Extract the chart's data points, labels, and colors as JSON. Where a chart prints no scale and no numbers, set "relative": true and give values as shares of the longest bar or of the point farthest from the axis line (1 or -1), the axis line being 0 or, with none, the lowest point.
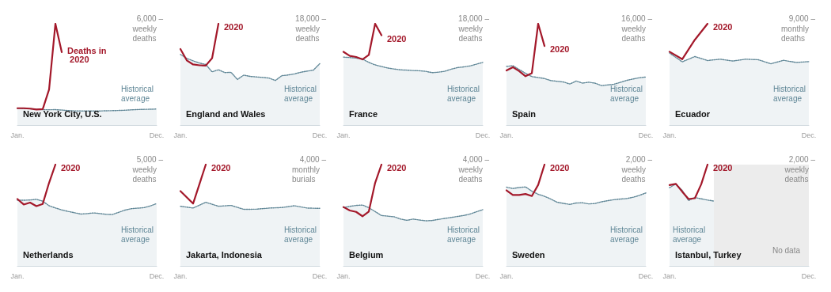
{
  "chart_data": [
    {
      "type": "line",
      "title": "New York City, U.S.",
      "ylabel": "weekly deaths",
      "annotations": [
        "6,000 –"
      ],
      "relative": true,
      "categories": [
        "Jan.",
        null,
        null,
        null,
        null,
        null,
        null,
        null,
        null,
        null,
        null,
        null,
        null,
        null,
        null,
        null,
        null,
        null,
        null,
        null,
        null,
        null,
        "Dec."
      ],
      "grid": false,
      "legend": false,
      "marker": "none",
      "series": [
        {
          "name": "Historical average",
          "type": "area",
          "color": "#5f8696",
          "line_style": "dotted",
          "values": [
            0.166,
            0.164,
            0.161,
            0.156,
            0.151,
            0.151,
            0.152,
            0.148,
            0.143,
            0.139,
            0.139,
            0.139,
            0.139,
            0.139,
            0.141,
            0.142,
            0.144,
            0.146,
            0.15,
            0.153,
            0.155,
            0.156,
            0.158
          ]
        },
        {
          "name": "Deaths in 2020",
          "color": "#a3182a",
          "line_style": "solid",
          "values": [
            0.166,
            0.166,
            0.162,
            0.154,
            0.157,
            0.35,
            1,
            0.72,
            null,
            null,
            null,
            null,
            null,
            null,
            null,
            null,
            null,
            null,
            null,
            null,
            null,
            null,
            null
          ]
        }
      ]
    },
    {
      "type": "line",
      "title": "England and Wales",
      "ylabel": "weekly deaths",
      "annotations": [
        "18,000 –"
      ],
      "relative": true,
      "categories": [
        "Jan.",
        null,
        null,
        null,
        null,
        null,
        null,
        null,
        null,
        null,
        null,
        null,
        null,
        null,
        null,
        null,
        null,
        null,
        null,
        null,
        null,
        null,
        "Dec."
      ],
      "grid": false,
      "legend": false,
      "marker": "none",
      "series": [
        {
          "name": "Historical average",
          "type": "area",
          "color": "#5f8696",
          "line_style": "dotted",
          "values": [
            0.697,
            0.658,
            0.634,
            0.612,
            0.598,
            0.525,
            0.546,
            0.518,
            0.52,
            0.45,
            0.493,
            0.48,
            0.475,
            0.47,
            0.464,
            0.44,
            0.487,
            0.494,
            0.505,
            0.521,
            0.532,
            0.542,
            0.605
          ]
        },
        {
          "name": "2020",
          "color": "#a3182a",
          "line_style": "solid",
          "values": [
            0.75,
            0.638,
            0.598,
            0.59,
            0.587,
            0.66,
            1,
            null,
            null,
            null,
            null,
            null,
            null,
            null,
            null,
            null,
            null,
            null,
            null,
            null,
            null,
            null,
            null
          ]
        }
      ]
    },
    {
      "type": "line",
      "title": "France",
      "ylabel": "weekly deaths",
      "annotations": [
        "18,000 –"
      ],
      "relative": true,
      "categories": [
        "Jan.",
        null,
        null,
        null,
        null,
        null,
        null,
        null,
        null,
        null,
        null,
        null,
        null,
        null,
        null,
        null,
        null,
        null,
        null,
        null,
        null,
        null,
        "Dec."
      ],
      "grid": false,
      "legend": false,
      "marker": "none",
      "series": [
        {
          "name": "Historical average",
          "type": "area",
          "color": "#5f8696",
          "line_style": "dotted",
          "values": [
            0.671,
            0.666,
            0.661,
            0.652,
            0.618,
            0.594,
            0.578,
            0.563,
            0.553,
            0.545,
            0.542,
            0.538,
            0.536,
            0.53,
            0.517,
            0.522,
            0.531,
            0.551,
            0.567,
            0.574,
            0.584,
            0.601,
            0.618
          ]
        },
        {
          "name": "2020",
          "color": "#a3182a",
          "line_style": "solid",
          "values": [
            0.723,
            0.683,
            0.672,
            0.648,
            0.692,
            1,
            0.886,
            null,
            null,
            null,
            null,
            null,
            null,
            null,
            null,
            null,
            null,
            null,
            null,
            null,
            null,
            null,
            null
          ]
        }
      ]
    },
    {
      "type": "line",
      "title": "Spain",
      "ylabel": "weekly deaths",
      "annotations": [
        "16,000 –"
      ],
      "relative": true,
      "categories": [
        "Jan.",
        null,
        null,
        null,
        null,
        null,
        null,
        null,
        null,
        null,
        null,
        null,
        null,
        null,
        null,
        null,
        null,
        null,
        null,
        null,
        null,
        null,
        "Dec."
      ],
      "grid": false,
      "legend": false,
      "marker": "none",
      "series": [
        {
          "name": "Historical average",
          "type": "area",
          "color": "#5f8696",
          "line_style": "dotted",
          "values": [
            0.579,
            0.586,
            0.548,
            0.511,
            0.478,
            0.469,
            0.459,
            0.439,
            0.432,
            0.425,
            0.405,
            0.434,
            0.414,
            0.423,
            0.413,
            0.389,
            0.396,
            0.403,
            0.422,
            0.441,
            0.455,
            0.467,
            0.474
          ]
        },
        {
          "name": "2020",
          "color": "#a3182a",
          "line_style": "solid",
          "values": [
            0.539,
            0.571,
            0.532,
            0.482,
            0.512,
            1,
            0.78,
            null,
            null,
            null,
            null,
            null,
            null,
            null,
            null,
            null,
            null,
            null,
            null,
            null,
            null,
            null,
            null
          ]
        }
      ]
    },
    {
      "type": "line",
      "title": "Ecuador",
      "ylabel": "monthly deaths",
      "annotations": [
        "9,000 –"
      ],
      "relative": true,
      "categories": [
        "Jan.",
        null,
        null,
        null,
        null,
        null,
        null,
        null,
        null,
        null,
        null,
        "Dec."
      ],
      "grid": false,
      "legend": false,
      "marker": "none",
      "series": [
        {
          "name": "Historical average",
          "type": "area",
          "color": "#5f8696",
          "line_style": "dotted",
          "values": [
            0.711,
            0.624,
            0.676,
            0.637,
            0.65,
            0.632,
            0.65,
            0.645,
            0.605,
            0.639,
            0.618,
            0.626
          ]
        },
        {
          "name": "2020",
          "color": "#a3182a",
          "line_style": "solid",
          "values": [
            0.724,
            0.65,
            0.842,
            1,
            null,
            null,
            null,
            null,
            null,
            null,
            null,
            null
          ]
        }
      ]
    },
    {
      "type": "line",
      "title": "Netherlands",
      "ylabel": "weekly deaths",
      "annotations": [
        "5,000 –"
      ],
      "relative": true,
      "categories": [
        "Jan.",
        null,
        null,
        null,
        null,
        null,
        null,
        null,
        null,
        null,
        null,
        null,
        null,
        null,
        null,
        null,
        null,
        null,
        null,
        null,
        null,
        null,
        "Dec."
      ],
      "grid": false,
      "legend": false,
      "marker": "none",
      "series": [
        {
          "name": "Historical average",
          "type": "area",
          "color": "#5f8696",
          "line_style": "dotted",
          "values": [
            0.649,
            0.648,
            0.651,
            0.657,
            0.639,
            0.594,
            0.572,
            0.553,
            0.538,
            0.525,
            0.512,
            0.516,
            0.523,
            0.517,
            0.509,
            0.507,
            0.529,
            0.551,
            0.565,
            0.57,
            0.575,
            0.592,
            0.615
          ]
        },
        {
          "name": "2020",
          "color": "#a3182a",
          "line_style": "solid",
          "values": [
            0.66,
            0.606,
            0.625,
            0.59,
            0.612,
            0.82,
            1,
            null,
            null,
            null,
            null,
            null,
            null,
            null,
            null,
            null,
            null,
            null,
            null,
            null,
            null,
            null,
            null
          ]
        }
      ]
    },
    {
      "type": "line",
      "title": "Jakarta, Indonesia",
      "ylabel": "monthly burials",
      "annotations": [
        "4,000 –"
      ],
      "relative": true,
      "categories": [
        "Jan.",
        null,
        null,
        null,
        null,
        null,
        null,
        null,
        null,
        null,
        null,
        "Dec."
      ],
      "grid": false,
      "legend": false,
      "marker": "none",
      "series": [
        {
          "name": "Historical average",
          "type": "area",
          "color": "#5f8696",
          "line_style": "dotted",
          "values": [
            0.589,
            0.571,
            0.628,
            0.589,
            0.597,
            0.558,
            0.56,
            0.571,
            0.576,
            0.594,
            0.571,
            0.568
          ]
        },
        {
          "name": "2020",
          "color": "#a3182a",
          "line_style": "solid",
          "values": [
            0.738,
            0.615,
            1,
            null,
            null,
            null,
            null,
            null,
            null,
            null,
            null,
            null
          ]
        }
      ]
    },
    {
      "type": "line",
      "title": "Belgium",
      "ylabel": "weekly deaths",
      "annotations": [
        "4,000 –"
      ],
      "relative": true,
      "categories": [
        "Jan.",
        null,
        null,
        null,
        null,
        null,
        null,
        null,
        null,
        null,
        null,
        null,
        null,
        null,
        null,
        null,
        null,
        null,
        null,
        null,
        null,
        null,
        "Dec."
      ],
      "grid": false,
      "legend": false,
      "marker": "none",
      "series": [
        {
          "name": "Historical average",
          "type": "area",
          "color": "#5f8696",
          "line_style": "dotted",
          "values": [
            0.576,
            0.588,
            0.597,
            0.601,
            0.575,
            0.536,
            0.497,
            0.491,
            0.485,
            0.463,
            0.45,
            0.462,
            0.453,
            0.445,
            0.448,
            0.459,
            0.469,
            0.478,
            0.488,
            0.498,
            0.512,
            0.534,
            0.555
          ]
        },
        {
          "name": "2020",
          "color": "#a3182a",
          "line_style": "solid",
          "values": [
            0.581,
            0.547,
            0.533,
            0.49,
            0.537,
            0.82,
            1,
            null,
            null,
            null,
            null,
            null,
            null,
            null,
            null,
            null,
            null,
            null,
            null,
            null,
            null,
            null,
            null
          ]
        }
      ]
    },
    {
      "type": "line",
      "title": "Sweden",
      "ylabel": "weekly deaths",
      "annotations": [
        "2,000 –"
      ],
      "relative": true,
      "categories": [
        "Jan.",
        null,
        null,
        null,
        null,
        null,
        null,
        null,
        null,
        null,
        null,
        null,
        null,
        null,
        null,
        null,
        null,
        null,
        null,
        null,
        null,
        null,
        "Dec."
      ],
      "grid": false,
      "legend": false,
      "marker": "none",
      "series": [
        {
          "name": "Historical average",
          "type": "area",
          "color": "#5f8696",
          "line_style": "dotted",
          "values": [
            0.777,
            0.764,
            0.774,
            0.78,
            0.738,
            0.707,
            0.687,
            0.66,
            0.628,
            0.617,
            0.607,
            0.621,
            0.623,
            0.612,
            0.616,
            0.633,
            0.644,
            0.654,
            0.66,
            0.665,
            0.678,
            0.696,
            0.72
          ]
        },
        {
          "name": "2020",
          "color": "#a3182a",
          "line_style": "solid",
          "values": [
            0.746,
            0.7,
            0.7,
            0.71,
            0.69,
            0.8,
            1,
            null,
            null,
            null,
            null,
            null,
            null,
            null,
            null,
            null,
            null,
            null,
            null,
            null,
            null,
            null,
            null
          ]
        }
      ]
    },
    {
      "type": "line",
      "title": "Istanbul, Turkey",
      "ylabel": "weekly deaths",
      "annotations": [
        "2,000 –",
        "No data"
      ],
      "relative": true,
      "categories": [
        "Jan.",
        null,
        null,
        null,
        null,
        null,
        null,
        null,
        null,
        null,
        null,
        null,
        null,
        null,
        null,
        null,
        null,
        null,
        null,
        null,
        null,
        null,
        "Dec."
      ],
      "grid": false,
      "legend": false,
      "marker": "none",
      "series": [
        {
          "name": "Historical average",
          "type": "area",
          "color": "#5f8696",
          "line_style": "dotted",
          "values": [
            0.772,
            0.81,
            0.746,
            0.645,
            0.675,
            0.662,
            0.65,
            0.64,
            null,
            null,
            null,
            null,
            null,
            null,
            null,
            null,
            null,
            null,
            null,
            null,
            null,
            null,
            null
          ]
        },
        {
          "name": "2020",
          "color": "#a3182a",
          "line_style": "solid",
          "values": [
            0.798,
            0.81,
            0.733,
            0.66,
            0.668,
            0.806,
            1,
            null,
            null,
            null,
            null,
            null,
            null,
            null,
            null,
            null,
            null,
            null,
            null,
            null,
            null,
            null,
            null
          ]
        }
      ]
    }
  ]
}
